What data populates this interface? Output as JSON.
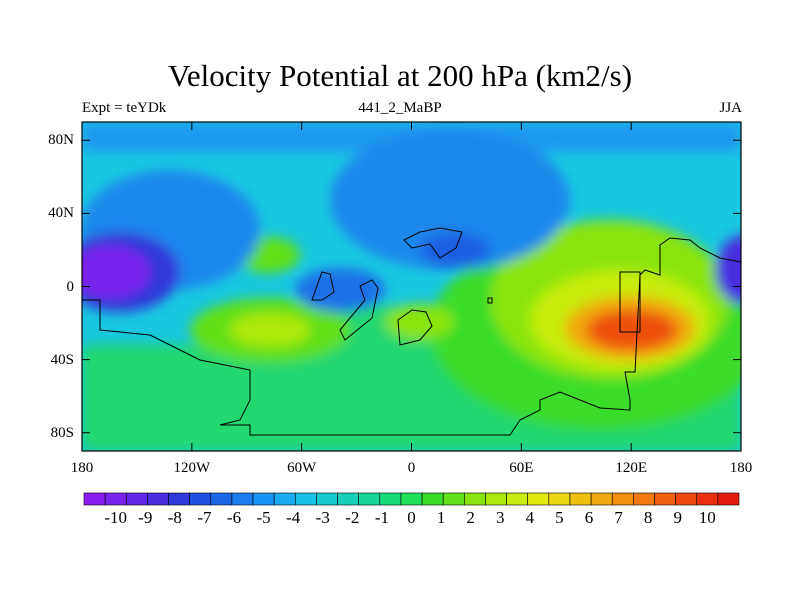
{
  "title": "Velocity Potential at 200 hPa (km2/s)",
  "left_label": "Expt = teYDk",
  "center_label": "441_2_MaBP",
  "right_label": "JJA",
  "map": {
    "lat_range": [
      -90,
      90
    ],
    "lon_range": [
      -180,
      180
    ],
    "y_ticks": [
      {
        "value": 80,
        "label": "80N"
      },
      {
        "value": 40,
        "label": "40N"
      },
      {
        "value": 0,
        "label": "0"
      },
      {
        "value": -40,
        "label": "40S"
      },
      {
        "value": -80,
        "label": "80S"
      }
    ],
    "x_ticks": [
      {
        "value": -180,
        "label": "180"
      },
      {
        "value": -120,
        "label": "120W"
      },
      {
        "value": -60,
        "label": "60W"
      },
      {
        "value": 0,
        "label": "0"
      },
      {
        "value": 60,
        "label": "60E"
      },
      {
        "value": 120,
        "label": "120E"
      },
      {
        "value": 180,
        "label": "180"
      }
    ],
    "colors": {
      "background": "#18c8e0",
      "land_outline": "#000000"
    }
  },
  "colorbar": {
    "labels": [
      "-10",
      "-9",
      "-8",
      "-7",
      "-6",
      "-5",
      "-4",
      "-3",
      "-2",
      "-1",
      "0",
      "1",
      "2",
      "3",
      "4",
      "5",
      "6",
      "7",
      "8",
      "9",
      "10"
    ],
    "colors": [
      "#8a1ef2",
      "#7a22ee",
      "#6428e8",
      "#4a2ee0",
      "#3038da",
      "#2050e0",
      "#1a66e6",
      "#1a7cee",
      "#1a94f4",
      "#18acee",
      "#18c2e6",
      "#18cad2",
      "#18d0b8",
      "#18d69a",
      "#18dc7a",
      "#20e05a",
      "#3adc2a",
      "#62e018",
      "#88e410",
      "#aae810",
      "#c8ec10",
      "#e0e810",
      "#ecd810",
      "#f0c010",
      "#f0a810",
      "#f29010",
      "#f27810",
      "#f06010",
      "#ee4810",
      "#ea3010",
      "#e41c10"
    ]
  }
}
